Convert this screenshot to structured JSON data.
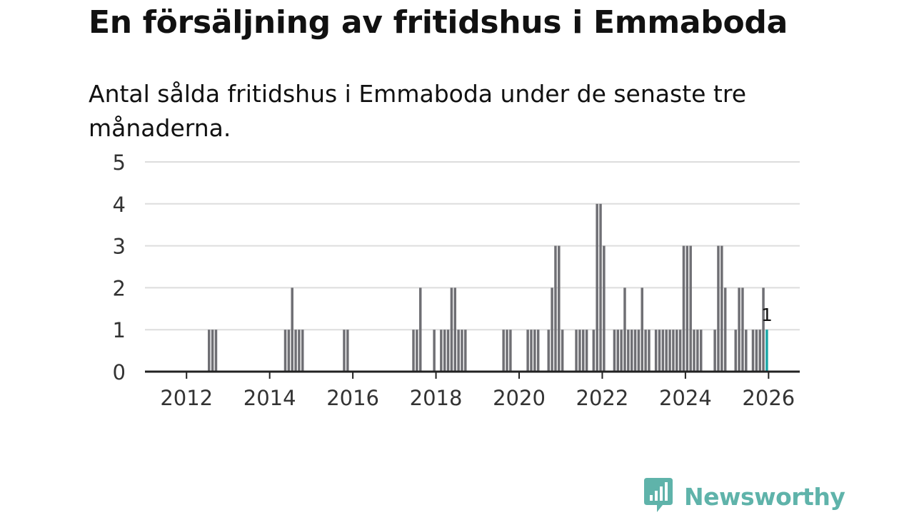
{
  "title": "En försäljning av fritidshus i Emmaboda",
  "subtitle": "Antal sålda fritidshus i Emmaboda under de senaste tre månaderna.",
  "brand": {
    "name": "Newsworthy",
    "icon": "newsworthy-logo-icon",
    "color": "#5fb3aa"
  },
  "colors": {
    "bar": "#6f6f74",
    "highlight": "#1aa6a6",
    "grid": "#dddddd",
    "axis": "#222222"
  },
  "chart_data": {
    "type": "bar",
    "title": "En försäljning av fritidshus i Emmaboda",
    "ylabel": "",
    "xlabel": "",
    "ylim": [
      0,
      5
    ],
    "yticks": [
      "0",
      "1",
      "2",
      "3",
      "4",
      "5"
    ],
    "xticks": [
      "2012",
      "2014",
      "2016",
      "2018",
      "2020",
      "2022",
      "2024",
      "2026"
    ],
    "xlim_months": [
      "2011-01",
      "2026-10"
    ],
    "grid": true,
    "highlight_label": "1",
    "bars": [
      {
        "month": "2012-07",
        "value": 1
      },
      {
        "month": "2012-08",
        "value": 1
      },
      {
        "month": "2012-09",
        "value": 1
      },
      {
        "month": "2014-05",
        "value": 1
      },
      {
        "month": "2014-06",
        "value": 1
      },
      {
        "month": "2014-07",
        "value": 2
      },
      {
        "month": "2014-08",
        "value": 1
      },
      {
        "month": "2014-09",
        "value": 1
      },
      {
        "month": "2014-10",
        "value": 1
      },
      {
        "month": "2015-10",
        "value": 1
      },
      {
        "month": "2015-11",
        "value": 1
      },
      {
        "month": "2017-06",
        "value": 1
      },
      {
        "month": "2017-07",
        "value": 1
      },
      {
        "month": "2017-08",
        "value": 2
      },
      {
        "month": "2017-12",
        "value": 1
      },
      {
        "month": "2018-02",
        "value": 1
      },
      {
        "month": "2018-03",
        "value": 1
      },
      {
        "month": "2018-04",
        "value": 1
      },
      {
        "month": "2018-05",
        "value": 2
      },
      {
        "month": "2018-06",
        "value": 2
      },
      {
        "month": "2018-07",
        "value": 1
      },
      {
        "month": "2018-08",
        "value": 1
      },
      {
        "month": "2018-09",
        "value": 1
      },
      {
        "month": "2019-08",
        "value": 1
      },
      {
        "month": "2019-09",
        "value": 1
      },
      {
        "month": "2019-10",
        "value": 1
      },
      {
        "month": "2020-03",
        "value": 1
      },
      {
        "month": "2020-04",
        "value": 1
      },
      {
        "month": "2020-05",
        "value": 1
      },
      {
        "month": "2020-06",
        "value": 1
      },
      {
        "month": "2020-09",
        "value": 1
      },
      {
        "month": "2020-10",
        "value": 2
      },
      {
        "month": "2020-11",
        "value": 3
      },
      {
        "month": "2020-12",
        "value": 3
      },
      {
        "month": "2021-01",
        "value": 1
      },
      {
        "month": "2021-05",
        "value": 1
      },
      {
        "month": "2021-06",
        "value": 1
      },
      {
        "month": "2021-07",
        "value": 1
      },
      {
        "month": "2021-08",
        "value": 1
      },
      {
        "month": "2021-10",
        "value": 1
      },
      {
        "month": "2021-11",
        "value": 4
      },
      {
        "month": "2021-12",
        "value": 4
      },
      {
        "month": "2022-01",
        "value": 3
      },
      {
        "month": "2022-04",
        "value": 1
      },
      {
        "month": "2022-05",
        "value": 1
      },
      {
        "month": "2022-06",
        "value": 1
      },
      {
        "month": "2022-07",
        "value": 2
      },
      {
        "month": "2022-08",
        "value": 1
      },
      {
        "month": "2022-09",
        "value": 1
      },
      {
        "month": "2022-10",
        "value": 1
      },
      {
        "month": "2022-11",
        "value": 1
      },
      {
        "month": "2022-12",
        "value": 2
      },
      {
        "month": "2023-01",
        "value": 1
      },
      {
        "month": "2023-02",
        "value": 1
      },
      {
        "month": "2023-04",
        "value": 1
      },
      {
        "month": "2023-05",
        "value": 1
      },
      {
        "month": "2023-06",
        "value": 1
      },
      {
        "month": "2023-07",
        "value": 1
      },
      {
        "month": "2023-08",
        "value": 1
      },
      {
        "month": "2023-09",
        "value": 1
      },
      {
        "month": "2023-10",
        "value": 1
      },
      {
        "month": "2023-11",
        "value": 1
      },
      {
        "month": "2023-12",
        "value": 3
      },
      {
        "month": "2024-01",
        "value": 3
      },
      {
        "month": "2024-02",
        "value": 3
      },
      {
        "month": "2024-03",
        "value": 1
      },
      {
        "month": "2024-04",
        "value": 1
      },
      {
        "month": "2024-05",
        "value": 1
      },
      {
        "month": "2024-09",
        "value": 1
      },
      {
        "month": "2024-10",
        "value": 3
      },
      {
        "month": "2024-11",
        "value": 3
      },
      {
        "month": "2024-12",
        "value": 2
      },
      {
        "month": "2025-03",
        "value": 1
      },
      {
        "month": "2025-04",
        "value": 2
      },
      {
        "month": "2025-05",
        "value": 2
      },
      {
        "month": "2025-06",
        "value": 1
      },
      {
        "month": "2025-08",
        "value": 1
      },
      {
        "month": "2025-09",
        "value": 1
      },
      {
        "month": "2025-10",
        "value": 1
      },
      {
        "month": "2025-11",
        "value": 2
      },
      {
        "month": "2025-12",
        "value": 1,
        "highlight": true
      }
    ]
  }
}
